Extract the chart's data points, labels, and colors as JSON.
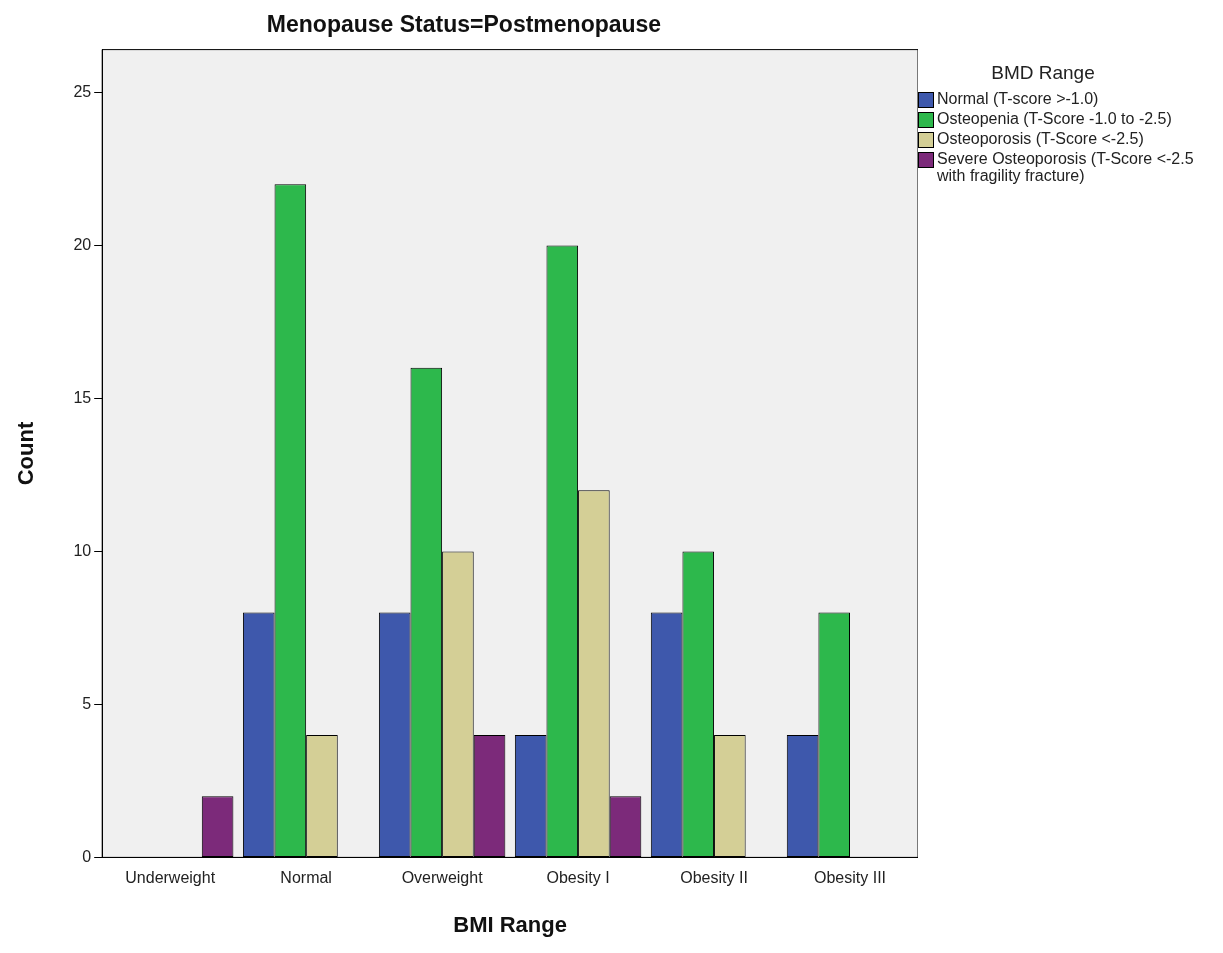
{
  "chart_data": {
    "type": "bar",
    "title": "Menopause Status=Postmenopause",
    "xlabel": "BMI Range",
    "ylabel": "Count",
    "legend_title": "BMD Range",
    "legend": "right",
    "grid": false,
    "categories": [
      "Underweight",
      "Normal",
      "Overweight",
      "Obesity I",
      "Obesity II",
      "Obesity III"
    ],
    "ylim": [
      0,
      26.4
    ],
    "yticks": [
      0,
      5,
      10,
      15,
      20,
      25
    ],
    "series": [
      {
        "name": "Normal (T-score >-1.0)",
        "color": "#3e58ac",
        "values": [
          null,
          8,
          8,
          4,
          8,
          4
        ]
      },
      {
        "name": "Osteopenia (T-Score -1.0 to -2.5)",
        "color": "#2db84c",
        "values": [
          null,
          22,
          16,
          20,
          10,
          8
        ]
      },
      {
        "name": "Osteoporosis (T-Score <-2.5)",
        "color": "#d4cf96",
        "values": [
          null,
          4,
          10,
          12,
          4,
          null
        ]
      },
      {
        "name": "Severe Osteoporosis  (T-Score <-2.5 with fragility fracture)",
        "color": "#7c2a7a",
        "values": [
          2,
          null,
          4,
          2,
          null,
          null
        ]
      }
    ]
  }
}
